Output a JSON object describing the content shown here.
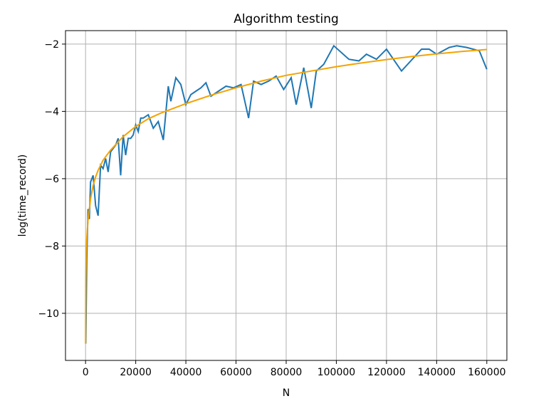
{
  "chart_data": {
    "type": "line",
    "title": "Algorithm testing",
    "xlabel": "N",
    "ylabel": "log(time_record)",
    "xlim": [
      -8000,
      168000
    ],
    "ylim": [
      -11.4,
      -1.6
    ],
    "xticks": [
      0,
      20000,
      40000,
      60000,
      80000,
      100000,
      120000,
      140000,
      160000
    ],
    "xtick_labels": [
      "0",
      "20000",
      "40000",
      "60000",
      "80000",
      "100000",
      "120000",
      "140000",
      "160000"
    ],
    "yticks": [
      -10,
      -8,
      -6,
      -4,
      -2
    ],
    "ytick_labels": [
      "−10",
      "−8",
      "−6",
      "−4",
      "−2"
    ],
    "grid": true,
    "colors": {
      "series_measured": "#1f77b4",
      "series_fit": "#f5a300",
      "grid": "#b0b0b0"
    },
    "series": [
      {
        "x": [
          100,
          500,
          1000,
          1500,
          2000,
          3000,
          4000,
          5000,
          6000,
          7000,
          8000,
          9000,
          10000,
          12000,
          13000,
          14000,
          15000,
          16000,
          17000,
          18000,
          19000,
          20000,
          21000,
          22000,
          23000,
          25000,
          27000,
          29000,
          31000,
          33000,
          34000,
          36000,
          38000,
          40000,
          42000,
          44000,
          46000,
          48000,
          50000,
          53000,
          56000,
          59000,
          62000,
          65000,
          67000,
          70000,
          73000,
          76000,
          79000,
          82000,
          84000,
          87000,
          90000,
          92000,
          95000,
          99000,
          105000,
          109000,
          112000,
          116000,
          120000,
          126000,
          134000,
          137000,
          140000,
          145000,
          148000,
          152000,
          157000,
          160000
        ],
        "y": [
          -10.9,
          -8.4,
          -6.9,
          -7.2,
          -6.1,
          -5.9,
          -6.8,
          -7.1,
          -5.6,
          -5.7,
          -5.4,
          -5.8,
          -5.2,
          -5.0,
          -4.8,
          -5.9,
          -4.7,
          -5.3,
          -4.8,
          -4.8,
          -4.7,
          -4.4,
          -4.6,
          -4.2,
          -4.2,
          -4.1,
          -4.5,
          -4.3,
          -4.85,
          -3.25,
          -3.7,
          -3.0,
          -3.2,
          -3.8,
          -3.5,
          -3.4,
          -3.3,
          -3.15,
          -3.55,
          -3.4,
          -3.25,
          -3.3,
          -3.2,
          -4.2,
          -3.1,
          -3.2,
          -3.1,
          -2.95,
          -3.35,
          -3.0,
          -3.8,
          -2.7,
          -3.9,
          -2.8,
          -2.6,
          -2.05,
          -2.45,
          -2.5,
          -2.3,
          -2.45,
          -2.15,
          -2.8,
          -2.15,
          -2.15,
          -2.3,
          -2.1,
          -2.05,
          -2.1,
          -2.2,
          -2.75
        ]
      },
      {
        "x": [
          10,
          100,
          300,
          500,
          800,
          1000,
          1500,
          2000,
          3000,
          4000,
          5000,
          7000,
          10000,
          15000,
          20000,
          25000,
          30000,
          40000,
          50000,
          60000,
          70000,
          80000,
          90000,
          100000,
          110000,
          120000,
          130000,
          140000,
          150000,
          160000
        ],
        "y": [
          -10.9,
          -9.0,
          -8.2,
          -7.8,
          -7.4,
          -7.2,
          -6.9,
          -6.6,
          -6.2,
          -5.95,
          -5.75,
          -5.45,
          -5.15,
          -4.75,
          -4.45,
          -4.22,
          -4.05,
          -3.77,
          -3.52,
          -3.3,
          -3.1,
          -2.93,
          -2.8,
          -2.67,
          -2.56,
          -2.46,
          -2.37,
          -2.29,
          -2.22,
          -2.16
        ]
      }
    ]
  }
}
